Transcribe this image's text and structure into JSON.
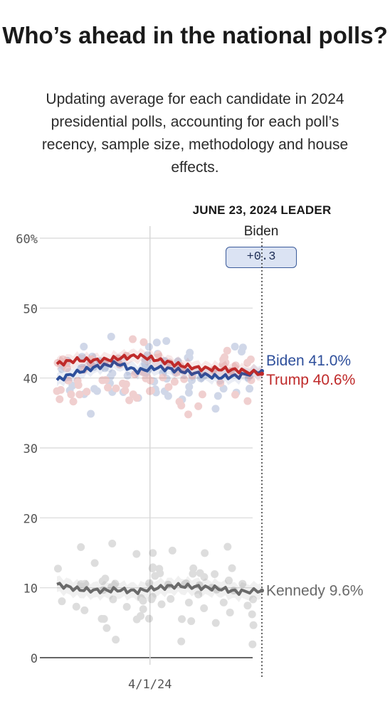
{
  "header": {
    "title": "Who’s ahead in the national polls?",
    "subtitle": "Updating average for each candidate in 2024 presidential polls, accounting for each poll’s recency, sample size, methodology and house effects."
  },
  "leader": {
    "date_label": "JUNE 23, 2024 LEADER",
    "name": "Biden",
    "margin": "+0.3"
  },
  "colors": {
    "biden": "#2e4f9b",
    "trump": "#bf2a2a",
    "kennedy": "#6a6a6a",
    "grid": "#d8d8d8"
  },
  "chart_data": {
    "type": "line",
    "title": "Who’s ahead in the national polls?",
    "x_axis": {
      "tick_labels": [
        "4/1/24"
      ],
      "ticks": [
        "2024-04-01"
      ],
      "range": [
        "2024-01-23",
        "2024-06-23"
      ]
    },
    "y_axis": {
      "tick_labels": [
        "0",
        "10",
        "20",
        "30",
        "40",
        "50",
        "60%"
      ],
      "ticks": [
        0,
        10,
        20,
        30,
        40,
        50,
        60
      ],
      "range": [
        0,
        60
      ]
    },
    "grid": true,
    "series": [
      {
        "name": "Biden",
        "final_label": "Biden 41.0%",
        "color": "#2e4f9b",
        "x": [
          "2024-01-23",
          "2024-02-07",
          "2024-02-22",
          "2024-03-08",
          "2024-03-23",
          "2024-04-07",
          "2024-04-22",
          "2024-05-07",
          "2024-05-22",
          "2024-06-06",
          "2024-06-23"
        ],
        "values": [
          39.7,
          40.8,
          41.6,
          42.1,
          41.0,
          41.5,
          41.1,
          40.6,
          40.1,
          40.3,
          41.0
        ]
      },
      {
        "name": "Trump",
        "final_label": "Trump 40.6%",
        "color": "#bf2a2a",
        "x": [
          "2024-01-23",
          "2024-02-07",
          "2024-02-22",
          "2024-03-08",
          "2024-03-23",
          "2024-04-07",
          "2024-04-22",
          "2024-05-07",
          "2024-05-22",
          "2024-06-06",
          "2024-06-23"
        ],
        "values": [
          42.0,
          42.6,
          42.5,
          42.8,
          43.2,
          42.6,
          41.9,
          41.4,
          41.3,
          41.1,
          40.6
        ]
      },
      {
        "name": "Kennedy",
        "final_label": "Kennedy 9.6%",
        "color": "#6a6a6a",
        "x": [
          "2024-01-23",
          "2024-02-07",
          "2024-02-22",
          "2024-03-08",
          "2024-03-23",
          "2024-04-07",
          "2024-04-22",
          "2024-05-07",
          "2024-05-22",
          "2024-06-06",
          "2024-06-23"
        ],
        "values": [
          10.5,
          9.8,
          9.6,
          9.7,
          9.5,
          10.0,
          10.3,
          10.1,
          9.9,
          9.4,
          9.6
        ]
      }
    ]
  }
}
